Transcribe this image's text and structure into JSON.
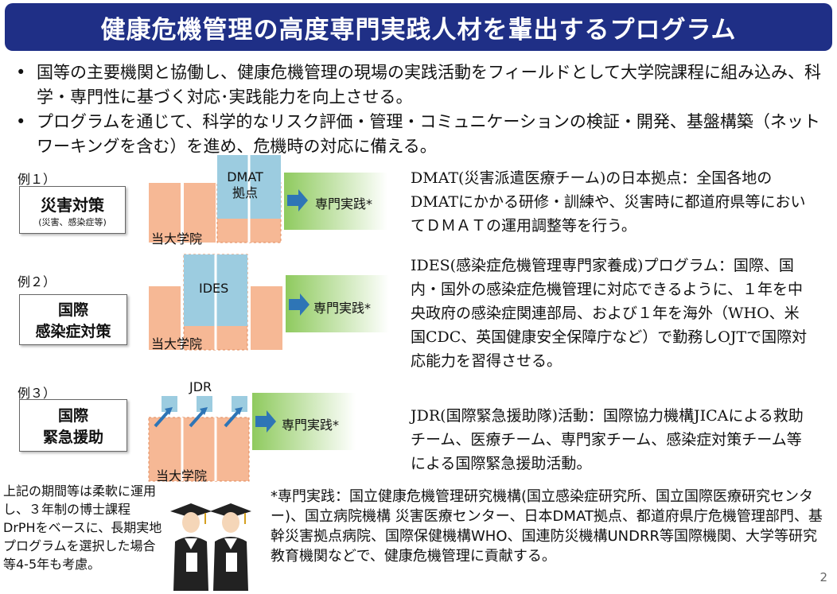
{
  "title": "健康危機管理の高度専門実践人材を輩出するプログラム",
  "bullets": [
    "国等の主要機関と協働し、健康危機管理の現場の実践活動をフィールドとして大学院課程に組み込み、科学・専門性に基づく対応･実践能力を向上させる。",
    "プログラムを通じて、科学的なリスク評価・管理・コミュニケーションの検証・開発、基盤構築（ネットワーキングを含む）を進め、危機時の対応に備える。"
  ],
  "examples": [
    {
      "label": "例１）",
      "box_line1": "災害対策",
      "box_line2": "(災害、感染症等)",
      "overlay": "DMAT\n拠点",
      "overlay_l1": "DMAT",
      "overlay_l2": "拠点",
      "university": "当大学院",
      "practice": "専門実践*",
      "description": "DMAT(災害派遣医療チーム)の日本拠点：全国各地のDMATにかかる研修・訓練や、災害時に都道府県等においてＤＭＡＴの運用調整等を行う。"
    },
    {
      "label": "例２）",
      "box_line1": "国際",
      "box_line2": "感染症対策",
      "overlay": "IDES",
      "university": "当大学院",
      "practice": "専門実践*",
      "description": "IDES(感染症危機管理専門家養成)プログラム：国際、国内・国外の感染症危機管理に対応できるように、１年を中央政府の感染症関連部局、および１年を海外（WHO、米国CDC、英国健康安全保障庁など）で勤務しOJTで国際対応能力を習得させる。"
    },
    {
      "label": "例３）",
      "box_line1": "国際",
      "box_line2": "緊急援助",
      "overlay": "JDR",
      "university": "当大学院",
      "practice": "専門実践*",
      "description": "JDR(国際緊急援助隊)活動：国際協力機構JICAによる救助チーム、医療チーム、専門家チーム、感染症対策チーム等による国際緊急援助活動。"
    }
  ],
  "side_note": "上記の期間等は柔軟に運用し、３年制の博士課程DrPHをベースに、長期実地プログラムを選択した場合等4-5年も考慮。",
  "footer": "*専門実践：国立健康危機管理研究機構(国立感染症研究所、国立国際医療研究センター)、国立病院機構 災害医療センター、日本DMAT拠点、都道府県庁危機管理部門、基幹災害拠点病院、国際保健機構WHO、国連防災機構UNDRR等国際機関、大学等研究教育機関などで、健康危機管理に貢献する。",
  "page_number": "2",
  "colors": {
    "title_bg": "#1f2f86",
    "orange": "#f6b895",
    "blue": "#9ccce0",
    "green": "#7bc142",
    "arrow": "#2e75b6"
  }
}
